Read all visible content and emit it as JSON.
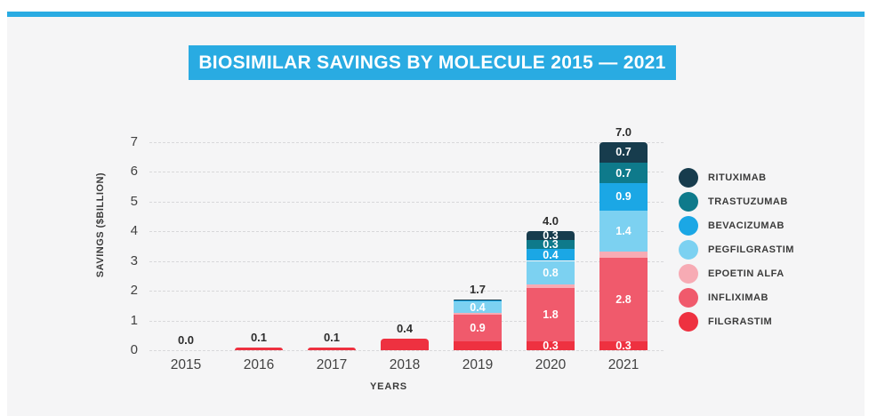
{
  "page": {
    "background": "#ffffff",
    "panel_bg": "#f5f5f6",
    "accent_color": "#29abe2"
  },
  "title": {
    "text": "BIOSIMILAR SAVINGS BY MOLECULE 2015 — 2021",
    "banner_color": "#29abe2",
    "text_color": "#ffffff"
  },
  "chart_data": {
    "type": "bar",
    "stacked": true,
    "title": "BIOSIMILAR SAVINGS BY MOLECULE 2015 — 2021",
    "xlabel": "YEARS",
    "ylabel": "SAVINGS ($BILLION)",
    "ylim": [
      0,
      7
    ],
    "yticks": [
      0,
      1,
      2,
      3,
      4,
      5,
      6,
      7
    ],
    "grid": "dashed-horizontal",
    "legend_position": "right",
    "categories": [
      "2015",
      "2016",
      "2017",
      "2018",
      "2019",
      "2020",
      "2021"
    ],
    "totals": [
      "0.0",
      "0.1",
      "0.1",
      "0.4",
      "1.7",
      "4.0",
      "7.0"
    ],
    "series": [
      {
        "name": "RITUXIMAB",
        "color": "#173c4d",
        "values": [
          0,
          0,
          0,
          0,
          0.02,
          0.3,
          0.7
        ],
        "labels": [
          null,
          null,
          null,
          null,
          null,
          "0.3",
          "0.7"
        ]
      },
      {
        "name": "TRASTUZUMAB",
        "color": "#0e7a8b",
        "values": [
          0,
          0,
          0,
          0,
          0,
          0.3,
          0.7
        ],
        "labels": [
          null,
          null,
          null,
          null,
          null,
          "0.3",
          "0.7"
        ]
      },
      {
        "name": "BEVACIZUMAB",
        "color": "#1ba7e5",
        "values": [
          0,
          0,
          0,
          0,
          0.04,
          0.4,
          0.9
        ],
        "labels": [
          null,
          null,
          null,
          null,
          null,
          "0.4",
          "0.9"
        ]
      },
      {
        "name": "PEGFILGRASTIM",
        "color": "#7cd1f1",
        "values": [
          0,
          0,
          0,
          0,
          0.4,
          0.8,
          1.4
        ],
        "labels": [
          null,
          null,
          null,
          null,
          "0.4",
          "0.8",
          "1.4"
        ]
      },
      {
        "name": "EPOETIN ALFA",
        "color": "#f7abb4",
        "values": [
          0,
          0,
          0,
          0,
          0.04,
          0.1,
          0.2
        ],
        "labels": [
          null,
          null,
          null,
          null,
          null,
          null,
          null
        ]
      },
      {
        "name": "INFLIXIMAB",
        "color": "#f05a6c",
        "values": [
          0,
          0,
          0,
          0,
          0.9,
          1.8,
          2.8
        ],
        "labels": [
          null,
          null,
          null,
          null,
          "0.9",
          "1.8",
          "2.8"
        ]
      },
      {
        "name": "FILGRASTIM",
        "color": "#ee3140",
        "values": [
          0,
          0.1,
          0.1,
          0.4,
          0.3,
          0.3,
          0.3
        ],
        "labels": [
          null,
          null,
          null,
          null,
          null,
          "0.3",
          "0.3"
        ]
      }
    ]
  }
}
